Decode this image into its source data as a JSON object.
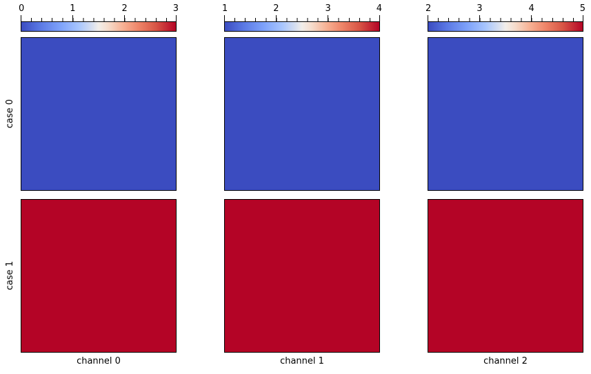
{
  "chart_data": {
    "type": "heatmap",
    "colormap": "coolwarm",
    "title": "",
    "rows": [
      "case 0",
      "case 1"
    ],
    "columns": [
      "channel 0",
      "channel 1",
      "channel 2"
    ],
    "colorbars": [
      {
        "min": 0,
        "max": 3,
        "tick_labels": [
          "0",
          "1",
          "2",
          "3"
        ],
        "minor_tick_step": 0.2,
        "orientation": "horizontal",
        "position": "top"
      },
      {
        "min": 1,
        "max": 4,
        "tick_labels": [
          "1",
          "2",
          "3",
          "4"
        ],
        "minor_tick_step": 0.2,
        "orientation": "horizontal",
        "position": "top"
      },
      {
        "min": 2,
        "max": 5,
        "tick_labels": [
          "2",
          "3",
          "4",
          "5"
        ],
        "minor_tick_step": 0.2,
        "orientation": "horizontal",
        "position": "top"
      }
    ],
    "values": [
      [
        0,
        1,
        2
      ],
      [
        3,
        4,
        5
      ]
    ],
    "layout": {
      "grid": "2 rows x 3 columns",
      "legend": "none",
      "gridlines": false
    }
  },
  "colors": {
    "background": "#ffffff",
    "border": "#000000",
    "case0_fill": "#3b4cc0",
    "case1_fill": "#b40426",
    "colormap_low": "#3b4cc0",
    "colormap_mid": "#f2eeea",
    "colormap_high": "#b40426"
  }
}
